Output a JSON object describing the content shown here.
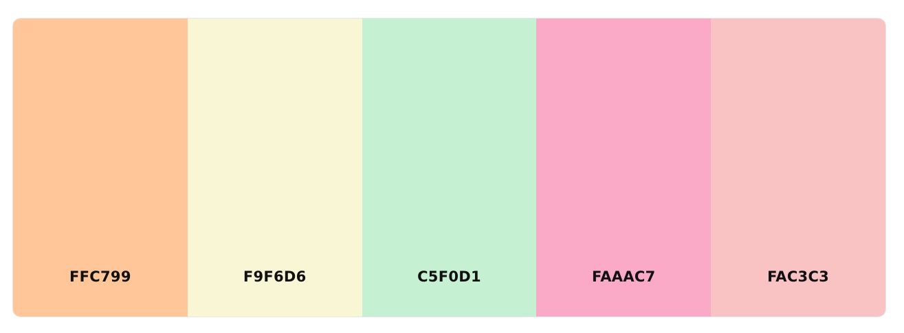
{
  "palette": {
    "swatches": [
      {
        "hex": "FFC799",
        "color": "#FFC799"
      },
      {
        "hex": "F9F6D6",
        "color": "#F9F6D6"
      },
      {
        "hex": "C5F0D1",
        "color": "#C5F0D1"
      },
      {
        "hex": "FAAAC7",
        "color": "#FAAAC7"
      },
      {
        "hex": "FAC3C3",
        "color": "#FAC3C3"
      }
    ]
  }
}
